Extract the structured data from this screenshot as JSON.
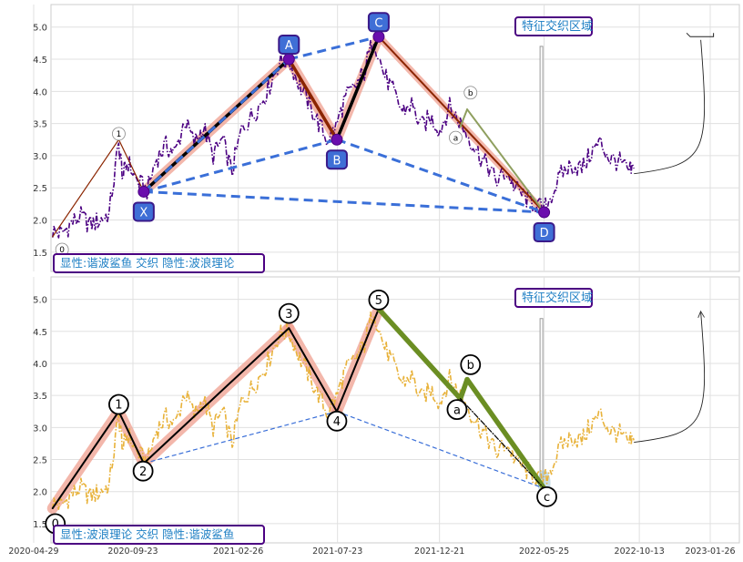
{
  "chart_data": [
    {
      "type": "line",
      "title": "",
      "xlabel": "",
      "ylabel": "",
      "ylim": [
        1.2,
        5.35
      ],
      "yticks": [
        1.5,
        2.0,
        2.5,
        3.0,
        3.5,
        4.0,
        4.5,
        5.0
      ],
      "grid": true,
      "price_color": "#4b0082",
      "price_style": "dash-dot",
      "price_points": [
        [
          "2020-05-27",
          1.83
        ],
        [
          "2020-06-10",
          1.78
        ],
        [
          "2020-06-24",
          1.95
        ],
        [
          "2020-07-08",
          2.05
        ],
        [
          "2020-07-22",
          1.92
        ],
        [
          "2020-08-05",
          2.0
        ],
        [
          "2020-08-19",
          2.1
        ],
        [
          "2020-09-02",
          3.15
        ],
        [
          "2020-09-09",
          2.7
        ],
        [
          "2020-09-16",
          2.9
        ],
        [
          "2020-09-30",
          2.6
        ],
        [
          "2020-10-14",
          2.45
        ],
        [
          "2020-10-28",
          2.95
        ],
        [
          "2020-11-11",
          3.15
        ],
        [
          "2020-11-25",
          3.05
        ],
        [
          "2020-12-09",
          3.55
        ],
        [
          "2020-12-23",
          3.2
        ],
        [
          "2021-01-06",
          3.45
        ],
        [
          "2021-01-20",
          3.0
        ],
        [
          "2021-02-03",
          3.25
        ],
        [
          "2021-02-17",
          2.75
        ],
        [
          "2021-03-03",
          3.4
        ],
        [
          "2021-03-17",
          3.6
        ],
        [
          "2021-03-31",
          3.8
        ],
        [
          "2021-04-14",
          4.1
        ],
        [
          "2021-04-28",
          4.45
        ],
        [
          "2021-05-12",
          4.5
        ],
        [
          "2021-05-26",
          4.15
        ],
        [
          "2021-06-09",
          3.85
        ],
        [
          "2021-06-23",
          3.55
        ],
        [
          "2021-07-07",
          3.25
        ],
        [
          "2021-07-21",
          3.45
        ],
        [
          "2021-08-04",
          3.9
        ],
        [
          "2021-08-18",
          4.05
        ],
        [
          "2021-09-01",
          4.3
        ],
        [
          "2021-09-15",
          4.85
        ],
        [
          "2021-09-29",
          4.3
        ],
        [
          "2021-10-13",
          4.0
        ],
        [
          "2021-10-27",
          3.7
        ],
        [
          "2021-11-10",
          3.8
        ],
        [
          "2021-11-24",
          3.45
        ],
        [
          "2021-12-08",
          3.6
        ],
        [
          "2021-12-22",
          3.4
        ],
        [
          "2022-01-05",
          3.75
        ],
        [
          "2022-01-19",
          3.55
        ],
        [
          "2022-02-02",
          3.3
        ],
        [
          "2022-02-16",
          3.05
        ],
        [
          "2022-03-02",
          2.85
        ],
        [
          "2022-03-16",
          2.6
        ],
        [
          "2022-03-30",
          2.75
        ],
        [
          "2022-04-13",
          2.5
        ],
        [
          "2022-04-27",
          2.35
        ],
        [
          "2022-05-11",
          2.25
        ],
        [
          "2022-05-25",
          2.15
        ],
        [
          "2022-06-08",
          2.45
        ],
        [
          "2022-06-22",
          2.75
        ],
        [
          "2022-07-06",
          2.85
        ],
        [
          "2022-07-20",
          2.8
        ],
        [
          "2022-08-03",
          3.05
        ],
        [
          "2022-08-17",
          3.2
        ],
        [
          "2022-08-31",
          2.95
        ],
        [
          "2022-09-14",
          2.9
        ],
        [
          "2022-09-28",
          2.75
        ],
        [
          "2022-10-05",
          2.8
        ]
      ],
      "harmonic_legs": [
        {
          "from": [
            "2020-05-27",
            1.74
          ],
          "to": [
            "2020-09-02",
            3.25
          ],
          "color": "#8b2500",
          "style": "thin"
        },
        {
          "from": [
            "2020-09-02",
            3.25
          ],
          "to": [
            "2020-10-09",
            2.44
          ],
          "color": "#8b2500",
          "style": "thin"
        },
        {
          "from": [
            "2020-10-09",
            2.44
          ],
          "to": [
            "2021-05-12",
            4.5
          ],
          "color": "#000000",
          "style": "thick"
        },
        {
          "from": [
            "2021-05-12",
            4.5
          ],
          "to": [
            "2021-07-22",
            3.25
          ],
          "color": "#8b2500",
          "style": "thick"
        },
        {
          "from": [
            "2021-07-22",
            3.25
          ],
          "to": [
            "2021-09-22",
            4.85
          ],
          "color": "#000000",
          "style": "thick"
        },
        {
          "from": [
            "2021-09-22",
            4.85
          ],
          "to": [
            "2022-05-25",
            2.12
          ],
          "color": "#8b2500",
          "style": "medium"
        },
        {
          "from": [
            "2022-01-31",
            3.72
          ],
          "to": [
            "2022-05-25",
            2.12
          ],
          "color": "#8f9f5f",
          "style": "medium"
        },
        {
          "from": [
            "2022-01-21",
            3.45
          ],
          "to": [
            "2022-01-31",
            3.72
          ],
          "color": "#8f9f5f",
          "style": "medium"
        }
      ],
      "pattern_points": [
        {
          "label": "X",
          "date": "2020-10-09",
          "y": 2.44
        },
        {
          "label": "A",
          "date": "2021-05-12",
          "y": 4.5
        },
        {
          "label": "B",
          "date": "2021-07-22",
          "y": 3.25
        },
        {
          "label": "C",
          "date": "2021-09-22",
          "y": 4.85
        },
        {
          "label": "D",
          "date": "2022-05-25",
          "y": 2.12
        }
      ],
      "dashed_links": [
        [
          "X",
          "A"
        ],
        [
          "A",
          "C"
        ],
        [
          "X",
          "B"
        ],
        [
          "B",
          "D"
        ],
        [
          "X",
          "D"
        ]
      ],
      "wave_circle_labels": [
        {
          "label": "0",
          "date": "2020-06-10",
          "y": 1.54
        },
        {
          "label": "1",
          "date": "2020-09-02",
          "y": 3.34
        },
        {
          "label": "a",
          "date": "2022-01-14",
          "y": 3.28
        },
        {
          "label": "b",
          "date": "2022-02-05",
          "y": 3.98
        }
      ],
      "region_label": "特征交织区域",
      "bottom_label": "显性:谐波鲨鱼 交织 隐性:波浪理论",
      "projection": {
        "from": [
          "2022-10-05",
          2.72
        ],
        "to": [
          "2023-01-12",
          4.8
        ]
      },
      "projection_bar": {
        "from": [
          "2022-12-22",
          4.85
        ],
        "to": [
          "2023-01-12",
          4.85
        ]
      },
      "highlight_bar": {
        "date": "2022-05-21",
        "y_from": 2.1,
        "y_to": 4.7
      }
    },
    {
      "type": "line",
      "title": "",
      "xlabel": "",
      "ylabel": "",
      "ylim": [
        1.2,
        5.35
      ],
      "yticks": [
        1.5,
        2.0,
        2.5,
        3.0,
        3.5,
        4.0,
        4.5,
        5.0
      ],
      "xticks": [
        "2020-04-29",
        "2020-09-23",
        "2021-02-26",
        "2021-07-23",
        "2021-12-21",
        "2022-05-25",
        "2022-10-13",
        "2023-01-26"
      ],
      "grid": true,
      "price_color": "#e8b23a",
      "price_style": "dash-dot",
      "wave_legs": [
        {
          "from": [
            "2020-05-27",
            1.74
          ],
          "to": [
            "2020-09-02",
            3.25
          ],
          "color": "#000000",
          "style": "impulse"
        },
        {
          "from": [
            "2020-09-02",
            3.25
          ],
          "to": [
            "2020-10-09",
            2.44
          ],
          "color": "#000000",
          "style": "impulse"
        },
        {
          "from": [
            "2020-10-09",
            2.44
          ],
          "to": [
            "2021-05-12",
            4.55
          ],
          "color": "#000000",
          "style": "impulse"
        },
        {
          "from": [
            "2021-05-12",
            4.55
          ],
          "to": [
            "2021-07-22",
            3.25
          ],
          "color": "#000000",
          "style": "impulse"
        },
        {
          "from": [
            "2021-07-22",
            3.25
          ],
          "to": [
            "2021-09-22",
            4.85
          ],
          "color": "#000000",
          "style": "impulse"
        },
        {
          "from": [
            "2021-09-22",
            4.85
          ],
          "to": [
            "2022-01-21",
            3.45
          ],
          "color": "#6b8e23",
          "style": "corrective"
        },
        {
          "from": [
            "2022-01-21",
            3.45
          ],
          "to": [
            "2022-01-31",
            3.75
          ],
          "color": "#6b8e23",
          "style": "corrective"
        },
        {
          "from": [
            "2022-01-31",
            3.75
          ],
          "to": [
            "2022-05-25",
            2.05
          ],
          "color": "#6b8e23",
          "style": "corrective"
        },
        {
          "from": [
            "2022-01-21",
            3.45
          ],
          "to": [
            "2022-05-25",
            2.05
          ],
          "color": "#000000",
          "style": "dashdot-thin"
        }
      ],
      "dashed_links": [
        {
          "from": [
            "2020-10-09",
            2.44
          ],
          "to": [
            "2021-07-22",
            3.25
          ]
        },
        {
          "from": [
            "2021-07-22",
            3.25
          ],
          "to": [
            "2022-05-25",
            2.05
          ]
        }
      ],
      "wave_labels": [
        {
          "label": "0",
          "date": "2020-05-31",
          "y": 1.5
        },
        {
          "label": "1",
          "date": "2020-09-02",
          "y": 3.36
        },
        {
          "label": "2",
          "date": "2020-10-08",
          "y": 2.32
        },
        {
          "label": "3",
          "date": "2021-05-12",
          "y": 4.78
        },
        {
          "label": "4",
          "date": "2021-07-22",
          "y": 3.1
        },
        {
          "label": "5",
          "date": "2021-09-22",
          "y": 4.99
        },
        {
          "label": "a",
          "date": "2022-01-16",
          "y": 3.28
        },
        {
          "label": "b",
          "date": "2022-02-05",
          "y": 3.98
        },
        {
          "label": "c",
          "date": "2022-05-29",
          "y": 1.92
        }
      ],
      "region_label": "特征交织区域",
      "bottom_label": "显性:波浪理论 交织 隐性:谐波鲨鱼",
      "projection": {
        "from": [
          "2022-10-05",
          2.77
        ],
        "to": [
          "2023-01-12",
          4.8
        ]
      },
      "highlight_bar": {
        "date": "2022-05-21",
        "y_from": 2.1,
        "y_to": 4.7
      }
    }
  ]
}
